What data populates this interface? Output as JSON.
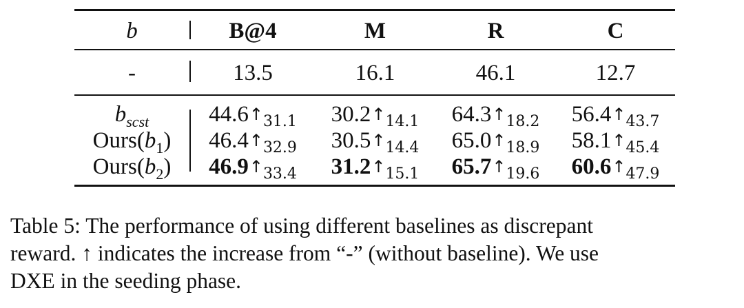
{
  "table": {
    "header": {
      "b": "b",
      "cols": [
        "B@4",
        "M",
        "R",
        "C"
      ]
    },
    "baseline_row": {
      "label": "-",
      "values": [
        "13.5",
        "16.1",
        "46.1",
        "12.7"
      ]
    },
    "rows": [
      {
        "label_main": "b",
        "label_sub": "scst",
        "label_suffix": "",
        "values": [
          "44.6",
          "30.2",
          "64.3",
          "56.4"
        ],
        "increases": [
          "31.1",
          "14.1",
          "18.2",
          "43.7"
        ],
        "bold": false
      },
      {
        "label_main": "Ours(",
        "label_var": "b",
        "label_sub": "1",
        "label_suffix": ")",
        "values": [
          "46.4",
          "30.5",
          "65.0",
          "58.1"
        ],
        "increases": [
          "32.9",
          "14.4",
          "18.9",
          "45.4"
        ],
        "bold": false
      },
      {
        "label_main": "Ours(",
        "label_var": "b",
        "label_sub": "2",
        "label_suffix": ")",
        "values": [
          "46.9",
          "31.2",
          "65.7",
          "60.6"
        ],
        "increases": [
          "33.4",
          "15.1",
          "19.6",
          "47.9"
        ],
        "bold": true
      }
    ],
    "arrow_symbol": "↑"
  },
  "caption": {
    "line1": "Table 5: The performance of using different baselines as discrepant",
    "line2": "reward. ↑ indicates the increase from “-” (without baseline). We use",
    "line3": "DXE in the seeding phase."
  }
}
